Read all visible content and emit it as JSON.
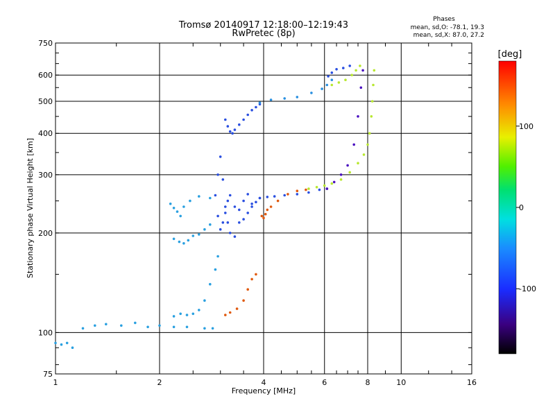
{
  "header": {
    "title_line1": "Tromsø 20140917 12:18:00–12:19:43",
    "title_line2": "RwPretec (8p)",
    "phases_title": "Phases",
    "phases_o": "mean, sd,O: -78.1, 19.3",
    "phases_x": "mean, sd,X:  87.0, 27.2"
  },
  "colorbar": {
    "label": "[deg]",
    "ticks": [
      "100",
      "0",
      "-100"
    ],
    "range": [
      -180,
      180
    ]
  },
  "chart_data": {
    "type": "scatter",
    "title": "Tromsø 20140917 12:18:00–12:19:43",
    "subtitle": "RwPretec (8p)",
    "xlabel": "Frequency [MHz]",
    "ylabel": "Stationary phase Virtual Height [km]",
    "x_scale": "log",
    "y_scale": "log",
    "xlim": [
      1,
      16
    ],
    "ylim": [
      75,
      750
    ],
    "x_ticks": [
      1,
      2,
      4,
      6,
      8,
      10,
      16
    ],
    "x_tick_labels": [
      "1",
      "2",
      "4",
      "6",
      "8",
      "10",
      "16"
    ],
    "y_ticks": [
      75,
      100,
      200,
      300,
      400,
      500,
      600,
      750
    ],
    "y_tick_labels": [
      "75",
      "100",
      "200",
      "300",
      "400",
      "500",
      "600",
      "750"
    ],
    "grid": true,
    "series": [
      {
        "color": "#2aa0e0",
        "points": [
          [
            1.0,
            93
          ],
          [
            1.04,
            92
          ],
          [
            1.08,
            93
          ],
          [
            1.12,
            90
          ],
          [
            1.2,
            103
          ],
          [
            1.3,
            105
          ],
          [
            1.4,
            106
          ],
          [
            1.55,
            105
          ],
          [
            1.7,
            107
          ],
          [
            1.85,
            104
          ],
          [
            2.0,
            105
          ],
          [
            2.2,
            104
          ],
          [
            2.4,
            104
          ],
          [
            2.7,
            103
          ],
          [
            2.85,
            103
          ]
        ]
      },
      {
        "color": "#2aa0e0",
        "points": [
          [
            2.2,
            112
          ],
          [
            2.3,
            114
          ],
          [
            2.4,
            113
          ],
          [
            2.5,
            114
          ],
          [
            2.6,
            117
          ],
          [
            2.7,
            125
          ],
          [
            2.8,
            140
          ],
          [
            2.9,
            155
          ],
          [
            2.95,
            170
          ]
        ]
      },
      {
        "color": "#2aa0e0",
        "points": [
          [
            2.2,
            192
          ],
          [
            2.28,
            188
          ],
          [
            2.35,
            186
          ],
          [
            2.42,
            190
          ],
          [
            2.5,
            196
          ],
          [
            2.6,
            198
          ],
          [
            2.7,
            205
          ],
          [
            2.8,
            212
          ]
        ]
      },
      {
        "color": "#2aa0e0",
        "points": [
          [
            2.15,
            245
          ],
          [
            2.2,
            238
          ],
          [
            2.25,
            232
          ],
          [
            2.3,
            225
          ],
          [
            2.35,
            240
          ],
          [
            2.45,
            250
          ],
          [
            2.6,
            258
          ],
          [
            2.8,
            255
          ]
        ]
      },
      {
        "color": "#2a4fe0",
        "points": [
          [
            2.9,
            260
          ],
          [
            2.95,
            300
          ],
          [
            3.0,
            340
          ],
          [
            3.05,
            290
          ],
          [
            3.1,
            240
          ],
          [
            3.15,
            215
          ],
          [
            3.2,
            200
          ],
          [
            3.3,
            195
          ],
          [
            3.4,
            215
          ],
          [
            3.5,
            220
          ],
          [
            3.6,
            230
          ],
          [
            3.7,
            240
          ],
          [
            3.8,
            248
          ],
          [
            3.9,
            255
          ]
        ]
      },
      {
        "color": "#2a4fe0",
        "points": [
          [
            2.95,
            225
          ],
          [
            3.0,
            205
          ],
          [
            3.05,
            215
          ],
          [
            3.1,
            230
          ],
          [
            3.15,
            250
          ],
          [
            3.2,
            260
          ],
          [
            3.3,
            240
          ],
          [
            3.4,
            235
          ],
          [
            3.5,
            250
          ],
          [
            3.6,
            262
          ],
          [
            3.7,
            245
          ]
        ]
      },
      {
        "color": "#2a4fe0",
        "points": [
          [
            3.9,
            255
          ],
          [
            4.1,
            257
          ],
          [
            4.3,
            258
          ],
          [
            4.6,
            260
          ],
          [
            5.0,
            262
          ],
          [
            5.4,
            265
          ],
          [
            5.8,
            270
          ],
          [
            6.1,
            272
          ]
        ]
      },
      {
        "color": "#2a4fe0",
        "points": [
          [
            3.1,
            440
          ],
          [
            3.15,
            420
          ],
          [
            3.2,
            405
          ],
          [
            3.25,
            400
          ],
          [
            3.3,
            410
          ],
          [
            3.4,
            425
          ],
          [
            3.5,
            440
          ],
          [
            3.6,
            455
          ],
          [
            3.7,
            470
          ],
          [
            3.8,
            480
          ],
          [
            3.9,
            490
          ]
        ]
      },
      {
        "color": "#2a90e0",
        "points": [
          [
            3.9,
            495
          ],
          [
            4.2,
            505
          ],
          [
            4.6,
            510
          ],
          [
            5.0,
            515
          ],
          [
            5.5,
            530
          ],
          [
            5.9,
            545
          ],
          [
            6.1,
            560
          ],
          [
            6.3,
            580
          ]
        ]
      },
      {
        "color": "#2a4fe0",
        "points": [
          [
            6.15,
            595
          ],
          [
            6.3,
            610
          ],
          [
            6.5,
            625
          ],
          [
            6.8,
            630
          ],
          [
            7.1,
            640
          ]
        ]
      },
      {
        "color": "#e05a10",
        "points": [
          [
            3.95,
            225
          ],
          [
            4.0,
            222
          ],
          [
            4.05,
            228
          ],
          [
            4.1,
            235
          ],
          [
            4.2,
            240
          ],
          [
            4.4,
            250
          ],
          [
            4.7,
            262
          ],
          [
            5.0,
            268
          ],
          [
            5.3,
            270
          ]
        ]
      },
      {
        "color": "#e05a10",
        "points": [
          [
            3.1,
            113
          ],
          [
            3.2,
            115
          ],
          [
            3.35,
            118
          ],
          [
            3.5,
            125
          ],
          [
            3.6,
            135
          ],
          [
            3.7,
            145
          ],
          [
            3.8,
            150
          ]
        ]
      },
      {
        "color": "#b8e830",
        "points": [
          [
            5.4,
            272
          ],
          [
            5.7,
            275
          ],
          [
            6.0,
            278
          ],
          [
            6.3,
            282
          ],
          [
            6.7,
            290
          ],
          [
            7.1,
            305
          ],
          [
            7.5,
            325
          ],
          [
            7.8,
            345
          ],
          [
            8.0,
            370
          ]
        ]
      },
      {
        "color": "#b8e830",
        "points": [
          [
            6.3,
            560
          ],
          [
            6.6,
            570
          ],
          [
            6.9,
            580
          ],
          [
            7.2,
            600
          ],
          [
            7.4,
            620
          ],
          [
            7.6,
            640
          ]
        ]
      },
      {
        "color": "#b8e830",
        "points": [
          [
            8.1,
            400
          ],
          [
            8.2,
            450
          ],
          [
            8.25,
            500
          ],
          [
            8.3,
            560
          ],
          [
            8.35,
            620
          ]
        ]
      },
      {
        "color": "#4a10c0",
        "points": [
          [
            6.1,
            272
          ],
          [
            6.4,
            285
          ],
          [
            6.7,
            300
          ],
          [
            7.0,
            320
          ],
          [
            7.3,
            370
          ],
          [
            7.5,
            450
          ],
          [
            7.65,
            550
          ],
          [
            7.75,
            620
          ]
        ]
      }
    ]
  }
}
